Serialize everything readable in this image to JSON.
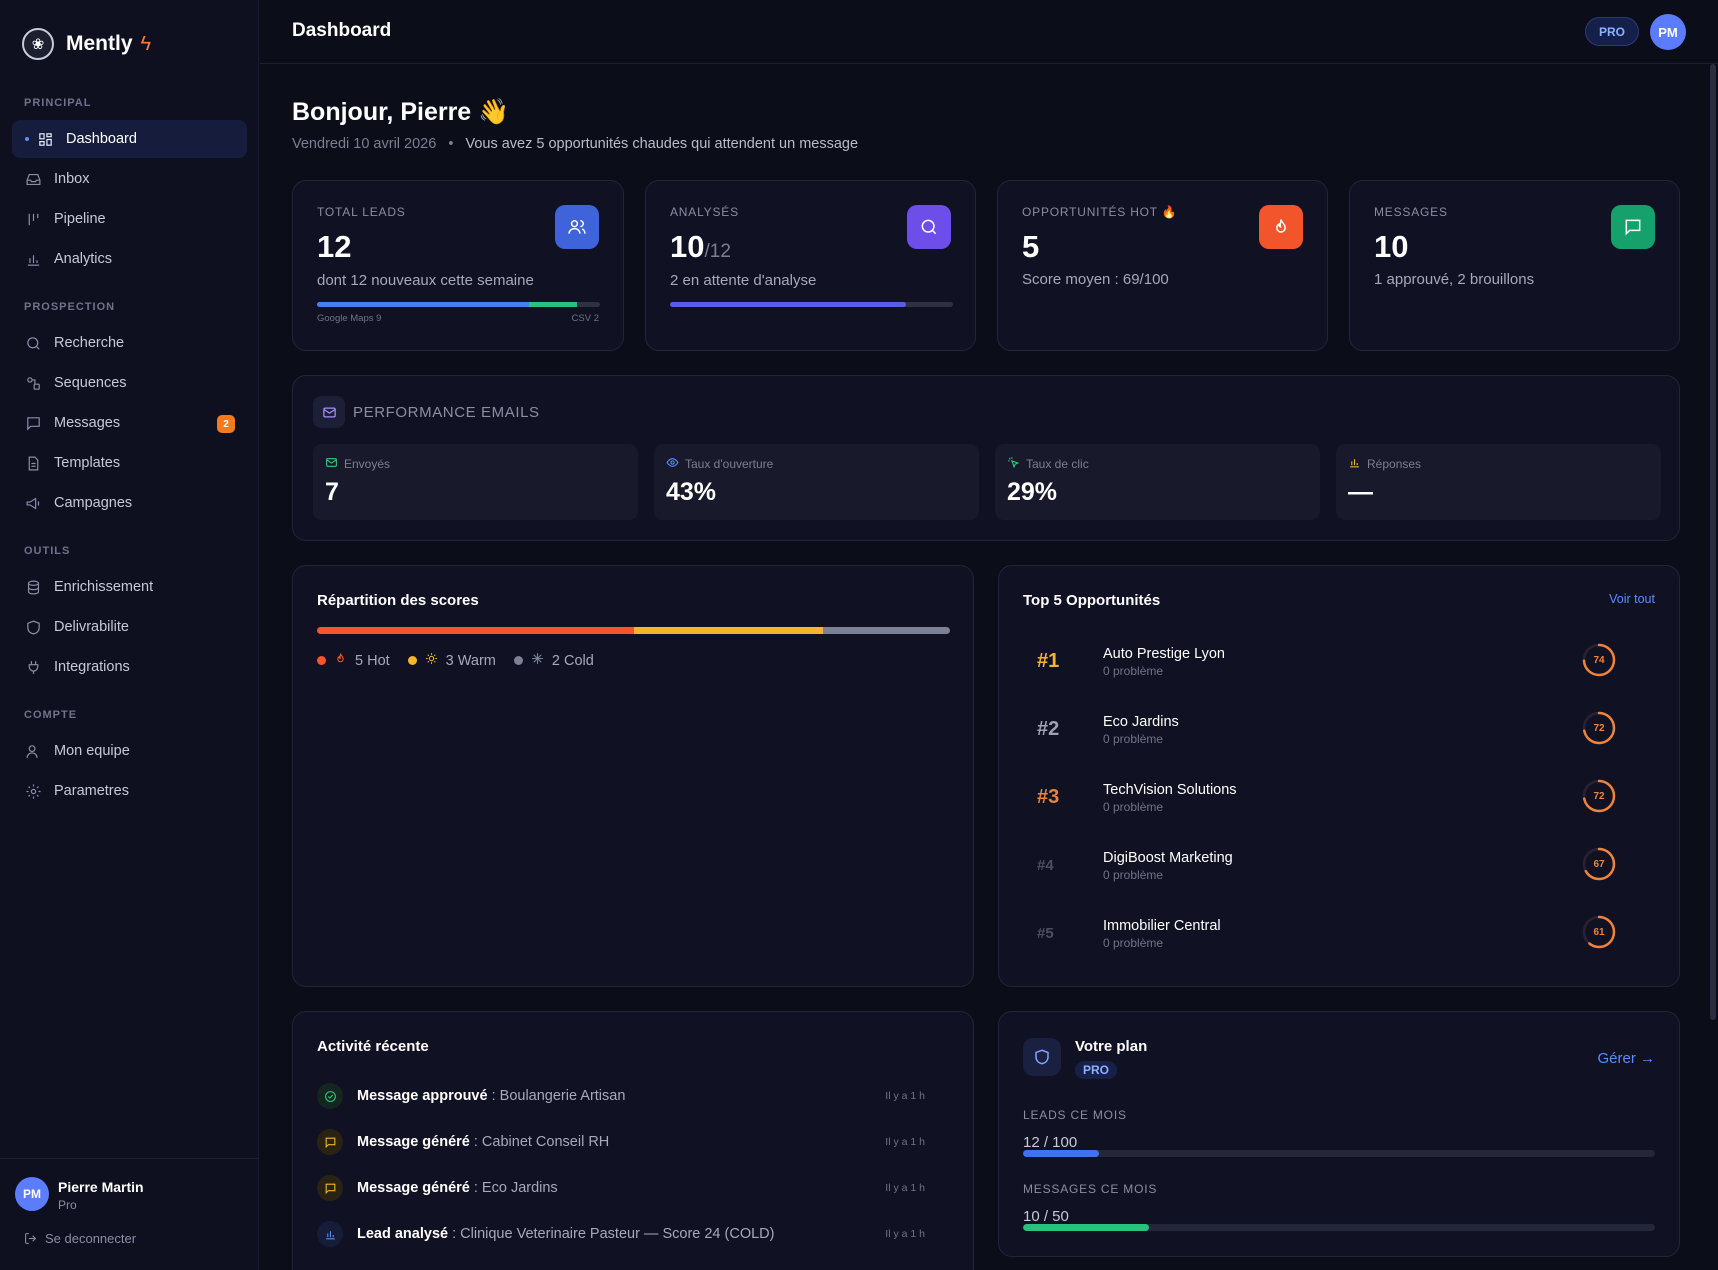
{
  "app": {
    "name": "Mently",
    "logo_icon": "bolt-icon"
  },
  "sidebar": {
    "sections": [
      {
        "label": "PRINCIPAL",
        "items": [
          {
            "label": "Dashboard",
            "icon": "grid-icon",
            "active": true
          },
          {
            "label": "Inbox",
            "icon": "inbox-icon"
          },
          {
            "label": "Pipeline",
            "icon": "pipeline-icon"
          },
          {
            "label": "Analytics",
            "icon": "bar-chart-icon"
          }
        ]
      },
      {
        "label": "PROSPECTION",
        "items": [
          {
            "label": "Recherche",
            "icon": "search-icon"
          },
          {
            "label": "Sequences",
            "icon": "sequence-icon"
          },
          {
            "label": "Messages",
            "icon": "message-icon",
            "badge": "2"
          },
          {
            "label": "Templates",
            "icon": "file-icon"
          },
          {
            "label": "Campagnes",
            "icon": "megaphone-icon"
          }
        ]
      },
      {
        "label": "OUTILS",
        "items": [
          {
            "label": "Enrichissement",
            "icon": "database-icon"
          },
          {
            "label": "Delivrabilite",
            "icon": "shield-icon"
          },
          {
            "label": "Integrations",
            "icon": "plug-icon"
          }
        ]
      },
      {
        "label": "COMPTE",
        "items": [
          {
            "label": "Mon equipe",
            "icon": "users-icon"
          },
          {
            "label": "Parametres",
            "icon": "gear-icon"
          }
        ]
      }
    ],
    "user": {
      "initials": "PM",
      "name": "Pierre Martin",
      "plan": "Pro",
      "logout": "Se deconnecter"
    }
  },
  "header": {
    "title": "Dashboard",
    "plan_pill": "PRO",
    "avatar": "PM"
  },
  "greeting": {
    "title": "Bonjour, Pierre",
    "emoji": "👋",
    "date": "Vendredi 10 avril 2026",
    "message": "Vous avez 5 opportunités chaudes qui attendent un message"
  },
  "kpis": [
    {
      "label": "TOTAL LEADS",
      "value": "12",
      "desc": "dont 12 nouveaux cette semaine",
      "icon": "users-icon",
      "color": "#3f63d8",
      "left_label": "Google Maps 9",
      "right_label": "CSV 2",
      "split": 0.75
    },
    {
      "label": "ANALYSÉS",
      "value": "10",
      "of": "/12",
      "desc": "2 en attente d'analyse",
      "icon": "search-icon",
      "color": "#6d4ee8",
      "progress": 0.8333
    },
    {
      "label": "OPPORTUNITÉS HOT",
      "value": "5",
      "desc": "Score moyen : 69/100",
      "icon": "flame-icon",
      "color": "#f2552c"
    },
    {
      "label": "MESSAGES",
      "value": "10",
      "desc": "1 approuvé, 2 brouillons",
      "icon": "chat-icon",
      "color": "#16a06b"
    }
  ],
  "perf": {
    "title": "PERFORMANCE EMAILS",
    "items": [
      {
        "label": "Envoyés",
        "value": "7",
        "icon": "mail-icon",
        "color": "#34c77b"
      },
      {
        "label": "Taux d'ouverture",
        "value": "43%",
        "icon": "eye-icon",
        "color": "#5b8cff"
      },
      {
        "label": "Taux de clic",
        "value": "29%",
        "icon": "click-icon",
        "color": "#34c77b"
      },
      {
        "label": "Réponses",
        "value": "—",
        "icon": "bar-chart-icon",
        "color": "#f5b52a"
      }
    ]
  },
  "scores": {
    "title": "Répartition des scores",
    "segments": [
      {
        "label": "5 Hot",
        "count": 5,
        "color": "#f5552c",
        "icon": "flame-icon"
      },
      {
        "label": "3 Warm",
        "count": 3,
        "color": "#f5b52a",
        "icon": "sun-icon"
      },
      {
        "label": "2 Cold",
        "count": 2,
        "color": "#7c8196",
        "icon": "snow-icon"
      }
    ]
  },
  "top5": {
    "title": "Top 5 Opportunités",
    "link": "Voir tout",
    "items": [
      {
        "rank": "#1",
        "name": "Auto Prestige Lyon",
        "sub": "0 problème",
        "score": 74,
        "rank_color": "#f5b52a"
      },
      {
        "rank": "#2",
        "name": "Eco Jardins",
        "sub": "0 problème",
        "score": 72,
        "rank_color": "#9da1b4"
      },
      {
        "rank": "#3",
        "name": "TechVision Solutions",
        "sub": "0 problème",
        "score": 72,
        "rank_color": "#e8833a"
      },
      {
        "rank": "#4",
        "name": "DigiBoost Marketing",
        "sub": "0 problème",
        "score": 67,
        "rank_color": "#4b4f62"
      },
      {
        "rank": "#5",
        "name": "Immobilier Central",
        "sub": "0 problème",
        "score": 61,
        "rank_color": "#4b4f62"
      }
    ]
  },
  "activity": {
    "title": "Activité récente",
    "items": [
      {
        "action": "Message approuvé",
        "target": " : Boulangerie Artisan",
        "time": "Il y a 1 h",
        "icon": "check-icon",
        "color": "#34c77b",
        "bg": "#13261f"
      },
      {
        "action": "Message généré",
        "target": " : Cabinet Conseil RH",
        "time": "Il y a 1 h",
        "icon": "message-icon",
        "color": "#f5b52a",
        "bg": "#2a2314"
      },
      {
        "action": "Message généré",
        "target": " : Eco Jardins",
        "time": "Il y a 1 h",
        "icon": "message-icon",
        "color": "#f5b52a",
        "bg": "#2a2314"
      },
      {
        "action": "Lead analysé",
        "target": " : Clinique Veterinaire Pasteur — Score 24 (COLD)",
        "time": "Il y a 1 h",
        "icon": "bar-chart-icon",
        "color": "#5b8cff",
        "bg": "#161d38"
      }
    ]
  },
  "plan": {
    "title": "Votre plan",
    "badge": "PRO",
    "manage": "Gérer →",
    "leads_label": "LEADS CE MOIS",
    "leads_value": "12 / 100",
    "leads_progress": 0.12,
    "messages_label": "MESSAGES CE MOIS",
    "messages_value": "10 / 50",
    "messages_progress": 0.2
  }
}
